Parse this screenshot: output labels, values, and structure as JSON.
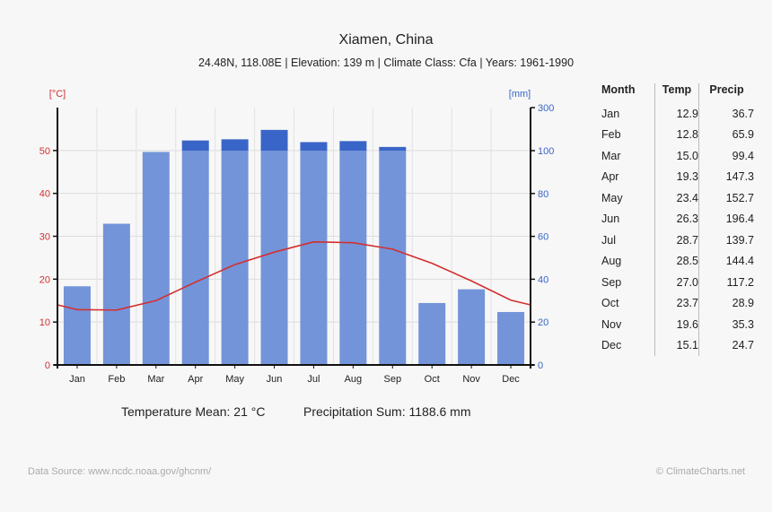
{
  "title": "Xiamen, China",
  "subtitle": "24.48N, 118.08E | Elevation: 139 m | Climate Class: Cfa | Years: 1961-1990",
  "summary": {
    "temp_mean": "Temperature Mean: 21 °C",
    "precip_sum": "Precipitation Sum: 1188.6 mm"
  },
  "footer": {
    "source": "Data Source: www.ncdc.noaa.gov/ghcnm/",
    "copyright": "© ClimateCharts.net"
  },
  "colors": {
    "temp": "#d32f2f",
    "precip": "#7394d9",
    "precip_dark": "#3a65c8",
    "axis_left_label": "#d32f2f",
    "axis_right_label": "#3a65c8"
  },
  "table": {
    "headers": [
      "Month",
      "Temp",
      "Precip"
    ],
    "rows": [
      [
        "Jan",
        "12.9",
        "36.7"
      ],
      [
        "Feb",
        "12.8",
        "65.9"
      ],
      [
        "Mar",
        "15.0",
        "99.4"
      ],
      [
        "Apr",
        "19.3",
        "147.3"
      ],
      [
        "May",
        "23.4",
        "152.7"
      ],
      [
        "Jun",
        "26.3",
        "196.4"
      ],
      [
        "Jul",
        "28.7",
        "139.7"
      ],
      [
        "Aug",
        "28.5",
        "144.4"
      ],
      [
        "Sep",
        "27.0",
        "117.2"
      ],
      [
        "Oct",
        "23.7",
        "28.9"
      ],
      [
        "Nov",
        "19.6",
        "35.3"
      ],
      [
        "Dec",
        "15.1",
        "24.7"
      ]
    ]
  },
  "chart_data": {
    "type": "bar",
    "categories": [
      "Jan",
      "Feb",
      "Mar",
      "Apr",
      "May",
      "Jun",
      "Jul",
      "Aug",
      "Sep",
      "Oct",
      "Nov",
      "Dec"
    ],
    "series": [
      {
        "kind": "bar",
        "axis": "right",
        "values": [
          36.7,
          65.9,
          99.4,
          147.3,
          152.7,
          196.4,
          139.7,
          144.4,
          117.2,
          28.9,
          35.3,
          24.7
        ]
      },
      {
        "kind": "line",
        "axis": "left",
        "values": [
          12.9,
          12.8,
          15.0,
          19.3,
          23.4,
          26.3,
          28.7,
          28.5,
          27.0,
          23.7,
          19.6,
          15.1
        ]
      }
    ],
    "left_axis": {
      "label": "[°C]",
      "ylim": [
        0,
        60
      ],
      "ticks": [
        0,
        10,
        20,
        30,
        40,
        50
      ]
    },
    "right_axis": {
      "label": "[mm]",
      "ylim": [
        0,
        300
      ],
      "ticks": [
        0,
        20,
        40,
        60,
        80,
        100,
        300
      ],
      "scale": "linear to 100, compressed above 100"
    },
    "grid": true
  }
}
